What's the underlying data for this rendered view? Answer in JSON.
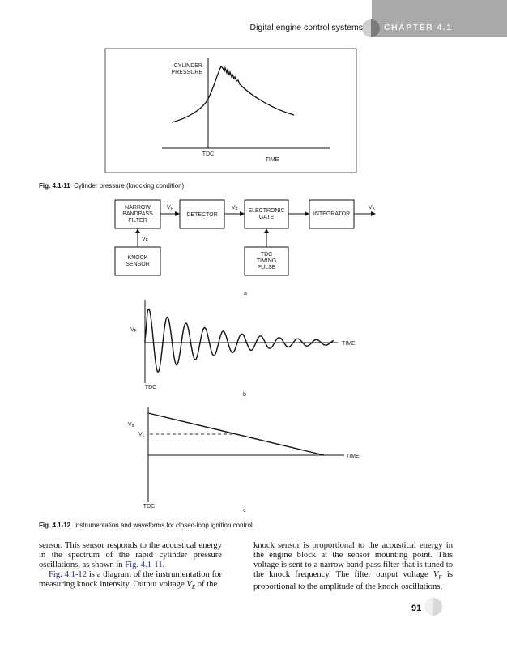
{
  "header": {
    "running_title": "Digital engine control systems",
    "chapter": "CHAPTER 4.1"
  },
  "fig11": {
    "ylabel_line1": "CYLINDER",
    "ylabel_line2": "PRESSURE",
    "tdc": "TDC",
    "xlabel": "TIME",
    "caption_num": "Fig. 4.1-11",
    "caption_text": "Cylinder pressure (knocking condition)."
  },
  "fig12": {
    "blocks": {
      "filter": [
        "NARROW",
        "BANDPASS",
        "FILTER"
      ],
      "detector": "DETECTOR",
      "gate": [
        "ELECTRONIC",
        "GATE"
      ],
      "integrator": "INTEGRATOR",
      "sensor": [
        "KNOCK",
        "SENSOR"
      ],
      "tdc_pulse": [
        "TDC",
        "TIMING",
        "PULSE"
      ]
    },
    "signals": {
      "vf": "V",
      "vf_sub": "F",
      "vd": "V",
      "vd_sub": "d",
      "vk": "V",
      "vk_sub": "K",
      "ve": "V",
      "ve_sub": "E",
      "vl": "V",
      "vl_sub": "L"
    },
    "panel_a": "a",
    "panel_b": "b",
    "panel_c": "c",
    "time": "TIME",
    "tdc": "TDC",
    "caption_num": "Fig. 4.1-12",
    "caption_text": "Instrumentation and waveforms for closed-loop ignition control."
  },
  "body": {
    "left_p1_a": "sensor. This sensor responds to the acoustical energy in the spectrum of the rapid cylinder pressure oscillations, as shown in ",
    "left_p1_link": "Fig. 4.1-11",
    "left_p1_b": ".",
    "left_p2_link": "Fig. 4.1-12",
    "left_p2_a": " is a diagram of the instrumentation for measuring knock intensity. Output voltage ",
    "left_p2_var": "V",
    "left_p2_sub": "E",
    "left_p2_b": " of the",
    "right_a": "knock sensor is proportional to the acoustical energy in the engine block at the sensor mounting point. This voltage is sent to a narrow band-pass filter that is tuned to the knock frequency. The filter output voltage ",
    "right_var": "V",
    "right_sub": "F",
    "right_b": " is proportional to the amplitude of the knock oscillations,"
  },
  "page_number": "91"
}
